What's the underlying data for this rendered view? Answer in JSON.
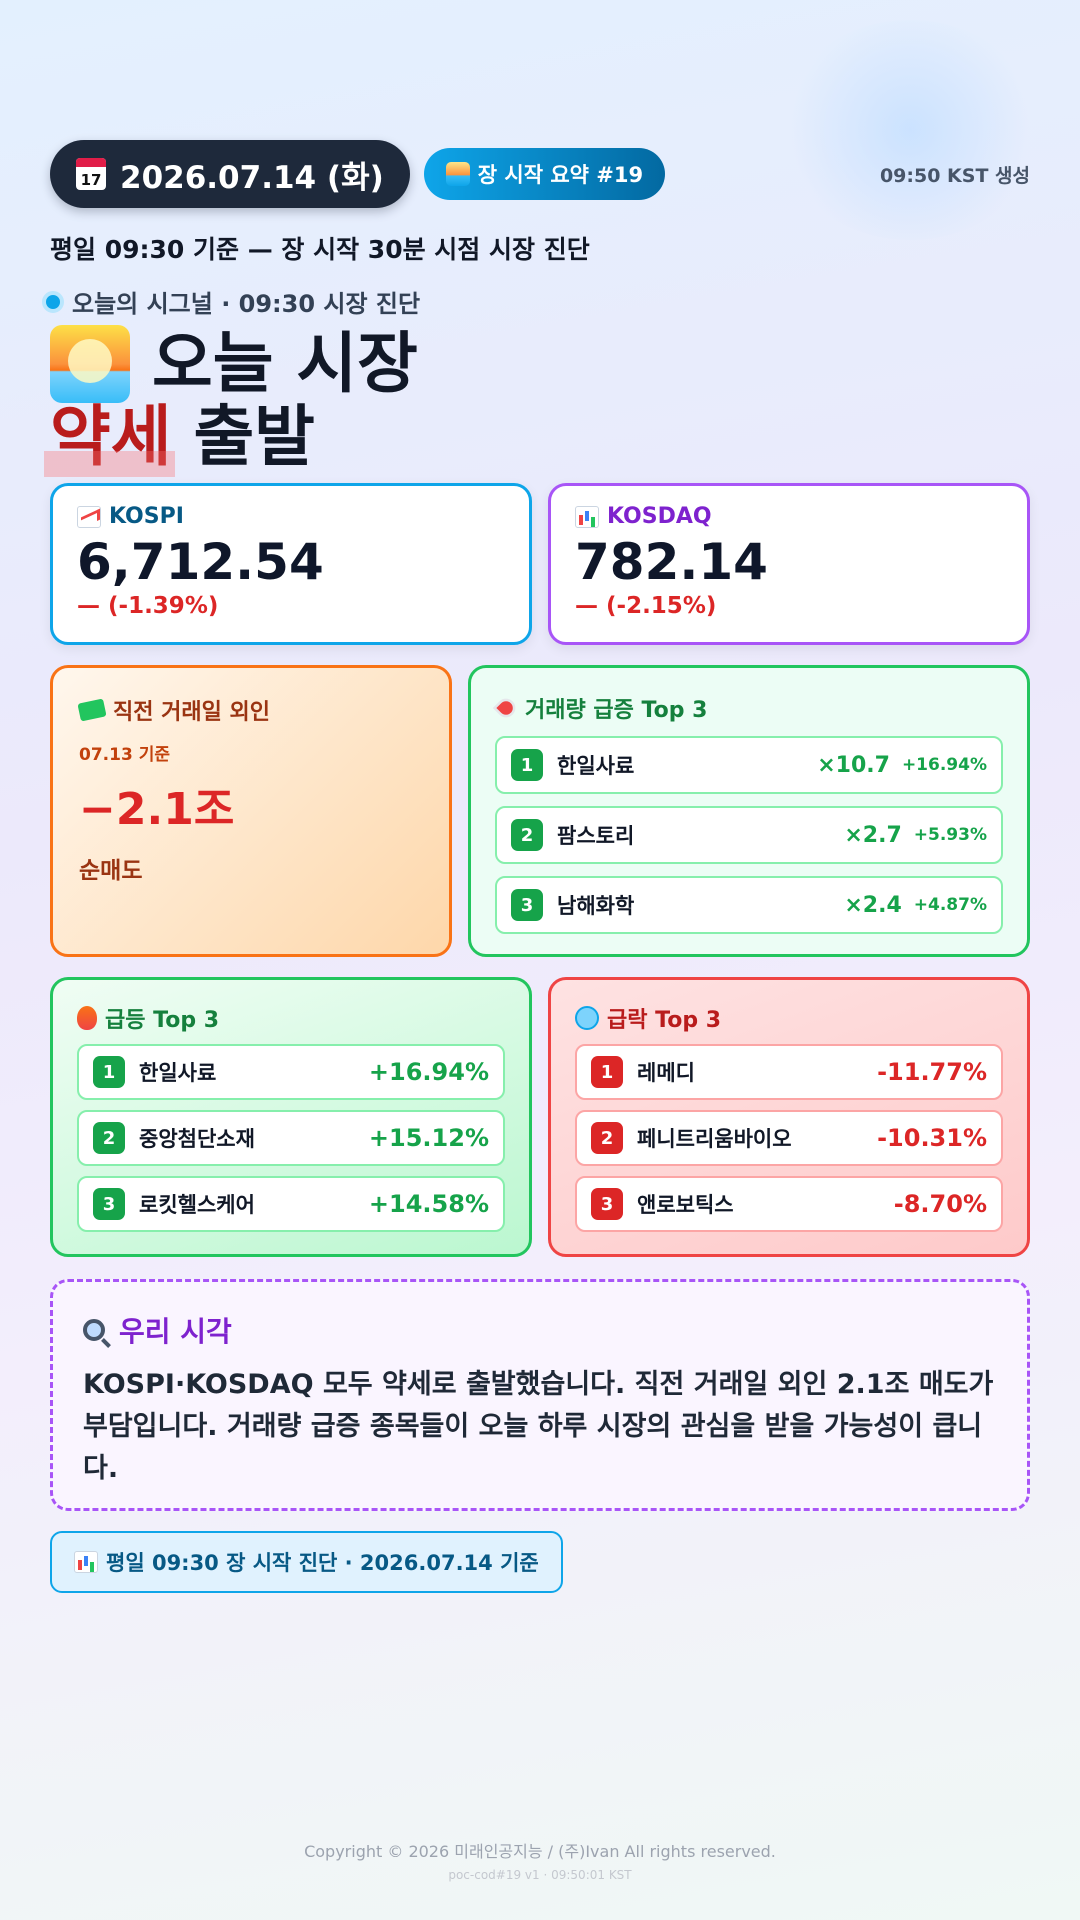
{
  "header": {
    "date": "2026.07.14 (화)",
    "calendar_day": "17",
    "summary_label": "장 시작 요약 #19",
    "generated": "09:50 KST 생성"
  },
  "subtitle": "평일 09:30 기준 — 장 시작 30분 시점 시장 진단",
  "signal": "오늘의 시그널 · 09:30 시장 진단",
  "headline": {
    "line1": "오늘 시장",
    "emphasis": "약세",
    "line2_rest": "출발"
  },
  "kospi": {
    "name": "KOSPI",
    "value": "6,712.54",
    "change": "— (-1.39%)"
  },
  "kosdaq": {
    "name": "KOSDAQ",
    "value": "782.14",
    "change": "— (-2.15%)"
  },
  "foreign": {
    "title": "직전 거래일 외인",
    "basis": "07.13 기준",
    "amount": "−2.1조",
    "label": "순매도"
  },
  "volume": {
    "title": "거래량 급증 Top 3",
    "items": [
      {
        "rank": "1",
        "name": "한일사료",
        "mult": "×10.7",
        "pct": "+16.94%"
      },
      {
        "rank": "2",
        "name": "팜스토리",
        "mult": "×2.7",
        "pct": "+5.93%"
      },
      {
        "rank": "3",
        "name": "남해화학",
        "mult": "×2.4",
        "pct": "+4.87%"
      }
    ]
  },
  "gainers": {
    "title": "급등 Top 3",
    "items": [
      {
        "rank": "1",
        "name": "한일사료",
        "pct": "+16.94%"
      },
      {
        "rank": "2",
        "name": "중앙첨단소재",
        "pct": "+15.12%"
      },
      {
        "rank": "3",
        "name": "로킷헬스케어",
        "pct": "+14.58%"
      }
    ]
  },
  "losers": {
    "title": "급락 Top 3",
    "items": [
      {
        "rank": "1",
        "name": "레메디",
        "pct": "-11.77%"
      },
      {
        "rank": "2",
        "name": "페니트리움바이오",
        "pct": "-10.31%"
      },
      {
        "rank": "3",
        "name": "앤로보틱스",
        "pct": "-8.70%"
      }
    ]
  },
  "view": {
    "title": "우리 시각",
    "body": "KOSPI·KOSDAQ 모두 약세로 출발했습니다. 직전 거래일 외인 2.1조 매도가 부담입니다. 거래량 급증 종목들이 오늘 하루 시장의 관심을 받을 가능성이 큽니다."
  },
  "badge": "평일 09:30 장 시작 진단 · 2026.07.14 기준",
  "footer": {
    "copyright": "Copyright © 2026 미래인공지능 / (주)Ivan All rights reserved.",
    "code": "poc-cod#19 v1 · 09:50:01 KST"
  },
  "colors": {
    "up": "#16a34a",
    "down": "#dc2626",
    "kospi_accent": "#0ea5e9",
    "kosdaq_accent": "#a855f7"
  },
  "icons": [
    "calendar-icon",
    "sunrise-icon",
    "chart-up-icon",
    "bar-chart-icon",
    "money-icon",
    "rocket-icon",
    "fire-icon",
    "cold-face-icon",
    "magnifier-icon"
  ]
}
